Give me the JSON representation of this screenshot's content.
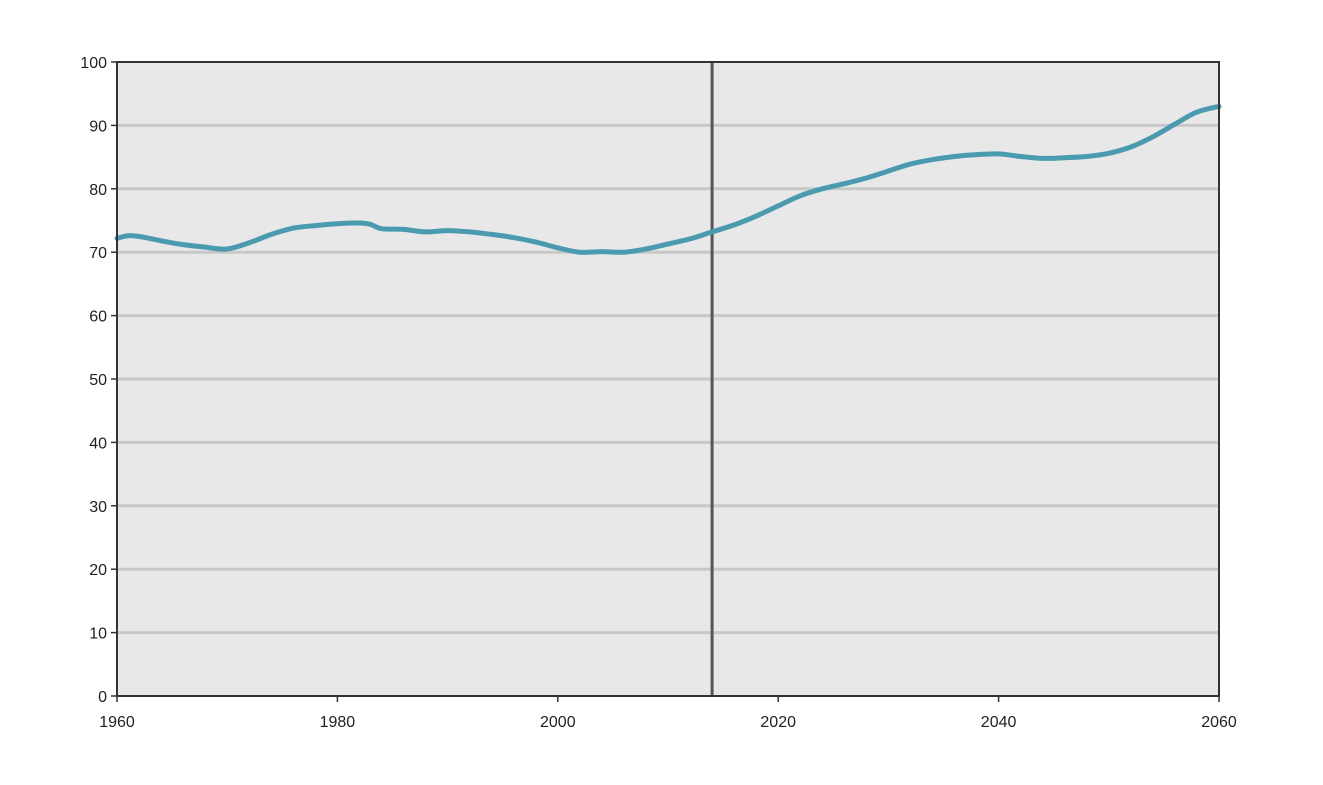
{
  "chart_data": {
    "type": "line",
    "title": "",
    "xlabel": "",
    "ylabel": "",
    "xlim": [
      1960,
      2060
    ],
    "ylim": [
      0,
      100
    ],
    "x_ticks": [
      1960,
      1980,
      2000,
      2020,
      2040,
      2060
    ],
    "y_ticks": [
      0,
      10,
      20,
      30,
      40,
      50,
      60,
      70,
      80,
      90,
      100
    ],
    "grid": "horizontal",
    "legend": "none",
    "vertical_marker_x": 2014,
    "colors": {
      "line": "#4a9bb0",
      "plot_background": "#e8e8e8",
      "gridline": "#c8c8c8",
      "marker_line": "#555555",
      "axis": "#333333"
    },
    "series": [
      {
        "x": [
          1960,
          1961,
          1962,
          1964,
          1966,
          1968,
          1970,
          1972,
          1974,
          1976,
          1978,
          1980,
          1982,
          1983,
          1984,
          1986,
          1988,
          1990,
          1992,
          1994,
          1996,
          1998,
          2000,
          2002,
          2004,
          2006,
          2008,
          2010,
          2012,
          2014,
          2016,
          2018,
          2020,
          2022,
          2024,
          2026,
          2028,
          2030,
          2032,
          2034,
          2036,
          2038,
          2040,
          2042,
          2044,
          2046,
          2048,
          2050,
          2052,
          2054,
          2056,
          2058,
          2060
        ],
        "values": [
          72.2,
          72.6,
          72.5,
          71.8,
          71.2,
          70.8,
          70.5,
          71.5,
          72.8,
          73.8,
          74.2,
          74.5,
          74.6,
          74.4,
          73.7,
          73.6,
          73.2,
          73.4,
          73.2,
          72.8,
          72.3,
          71.6,
          70.7,
          70.0,
          70.1,
          70.0,
          70.5,
          71.3,
          72.1,
          73.2,
          74.3,
          75.7,
          77.3,
          78.9,
          80.0,
          80.8,
          81.7,
          82.8,
          83.9,
          84.6,
          85.1,
          85.4,
          85.5,
          85.1,
          84.8,
          84.9,
          85.1,
          85.6,
          86.6,
          88.2,
          90.2,
          92.1,
          93.0
        ]
      }
    ]
  }
}
